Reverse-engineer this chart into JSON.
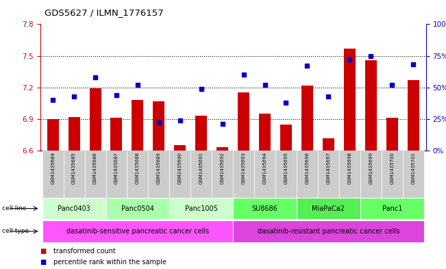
{
  "title": "GDS5627 / ILMN_1776157",
  "samples": [
    "GSM1435684",
    "GSM1435685",
    "GSM1435686",
    "GSM1435687",
    "GSM1435688",
    "GSM1435689",
    "GSM1435690",
    "GSM1435691",
    "GSM1435692",
    "GSM1435693",
    "GSM1435694",
    "GSM1435695",
    "GSM1435696",
    "GSM1435697",
    "GSM1435698",
    "GSM1435699",
    "GSM1435700",
    "GSM1435701"
  ],
  "bar_values": [
    6.9,
    6.92,
    7.19,
    6.91,
    7.08,
    7.07,
    6.65,
    6.93,
    6.63,
    7.15,
    6.95,
    6.85,
    7.22,
    6.72,
    7.57,
    7.46,
    6.91,
    7.27
  ],
  "dot_values": [
    40,
    43,
    58,
    44,
    52,
    22,
    24,
    49,
    21,
    60,
    52,
    38,
    67,
    43,
    72,
    75,
    52,
    68
  ],
  "ylim_left": [
    6.6,
    7.8
  ],
  "ylim_right": [
    0,
    100
  ],
  "yticks_left": [
    6.6,
    6.9,
    7.2,
    7.5,
    7.8
  ],
  "yticks_right": [
    0,
    25,
    50,
    75,
    100
  ],
  "ytick_labels_right": [
    "0%",
    "25%",
    "50%",
    "75%",
    "100%"
  ],
  "hlines": [
    6.9,
    7.2,
    7.5
  ],
  "bar_color": "#cc0000",
  "dot_color": "#0000cc",
  "bar_width": 0.55,
  "cell_lines": [
    {
      "label": "Panc0403",
      "start": 0,
      "end": 2,
      "color": "#ccffcc"
    },
    {
      "label": "Panc0504",
      "start": 3,
      "end": 5,
      "color": "#aaffaa"
    },
    {
      "label": "Panc1005",
      "start": 6,
      "end": 8,
      "color": "#ccffcc"
    },
    {
      "label": "SU8686",
      "start": 9,
      "end": 11,
      "color": "#66ff66"
    },
    {
      "label": "MiaPaCa2",
      "start": 12,
      "end": 14,
      "color": "#55ee55"
    },
    {
      "label": "Panc1",
      "start": 15,
      "end": 17,
      "color": "#66ff66"
    }
  ],
  "cell_types": [
    {
      "label": "dasatinib-sensitive pancreatic cancer cells",
      "start": 0,
      "end": 8,
      "color": "#ff55ff"
    },
    {
      "label": "dasatinib-resistant pancreatic cancer cells",
      "start": 9,
      "end": 17,
      "color": "#dd44dd"
    }
  ],
  "legend_items": [
    {
      "label": "transformed count",
      "color": "#cc0000"
    },
    {
      "label": "percentile rank within the sample",
      "color": "#0000cc"
    }
  ],
  "left_axis_color": "#cc0000",
  "right_axis_color": "#0000cc",
  "label_bg_color": "#cccccc"
}
